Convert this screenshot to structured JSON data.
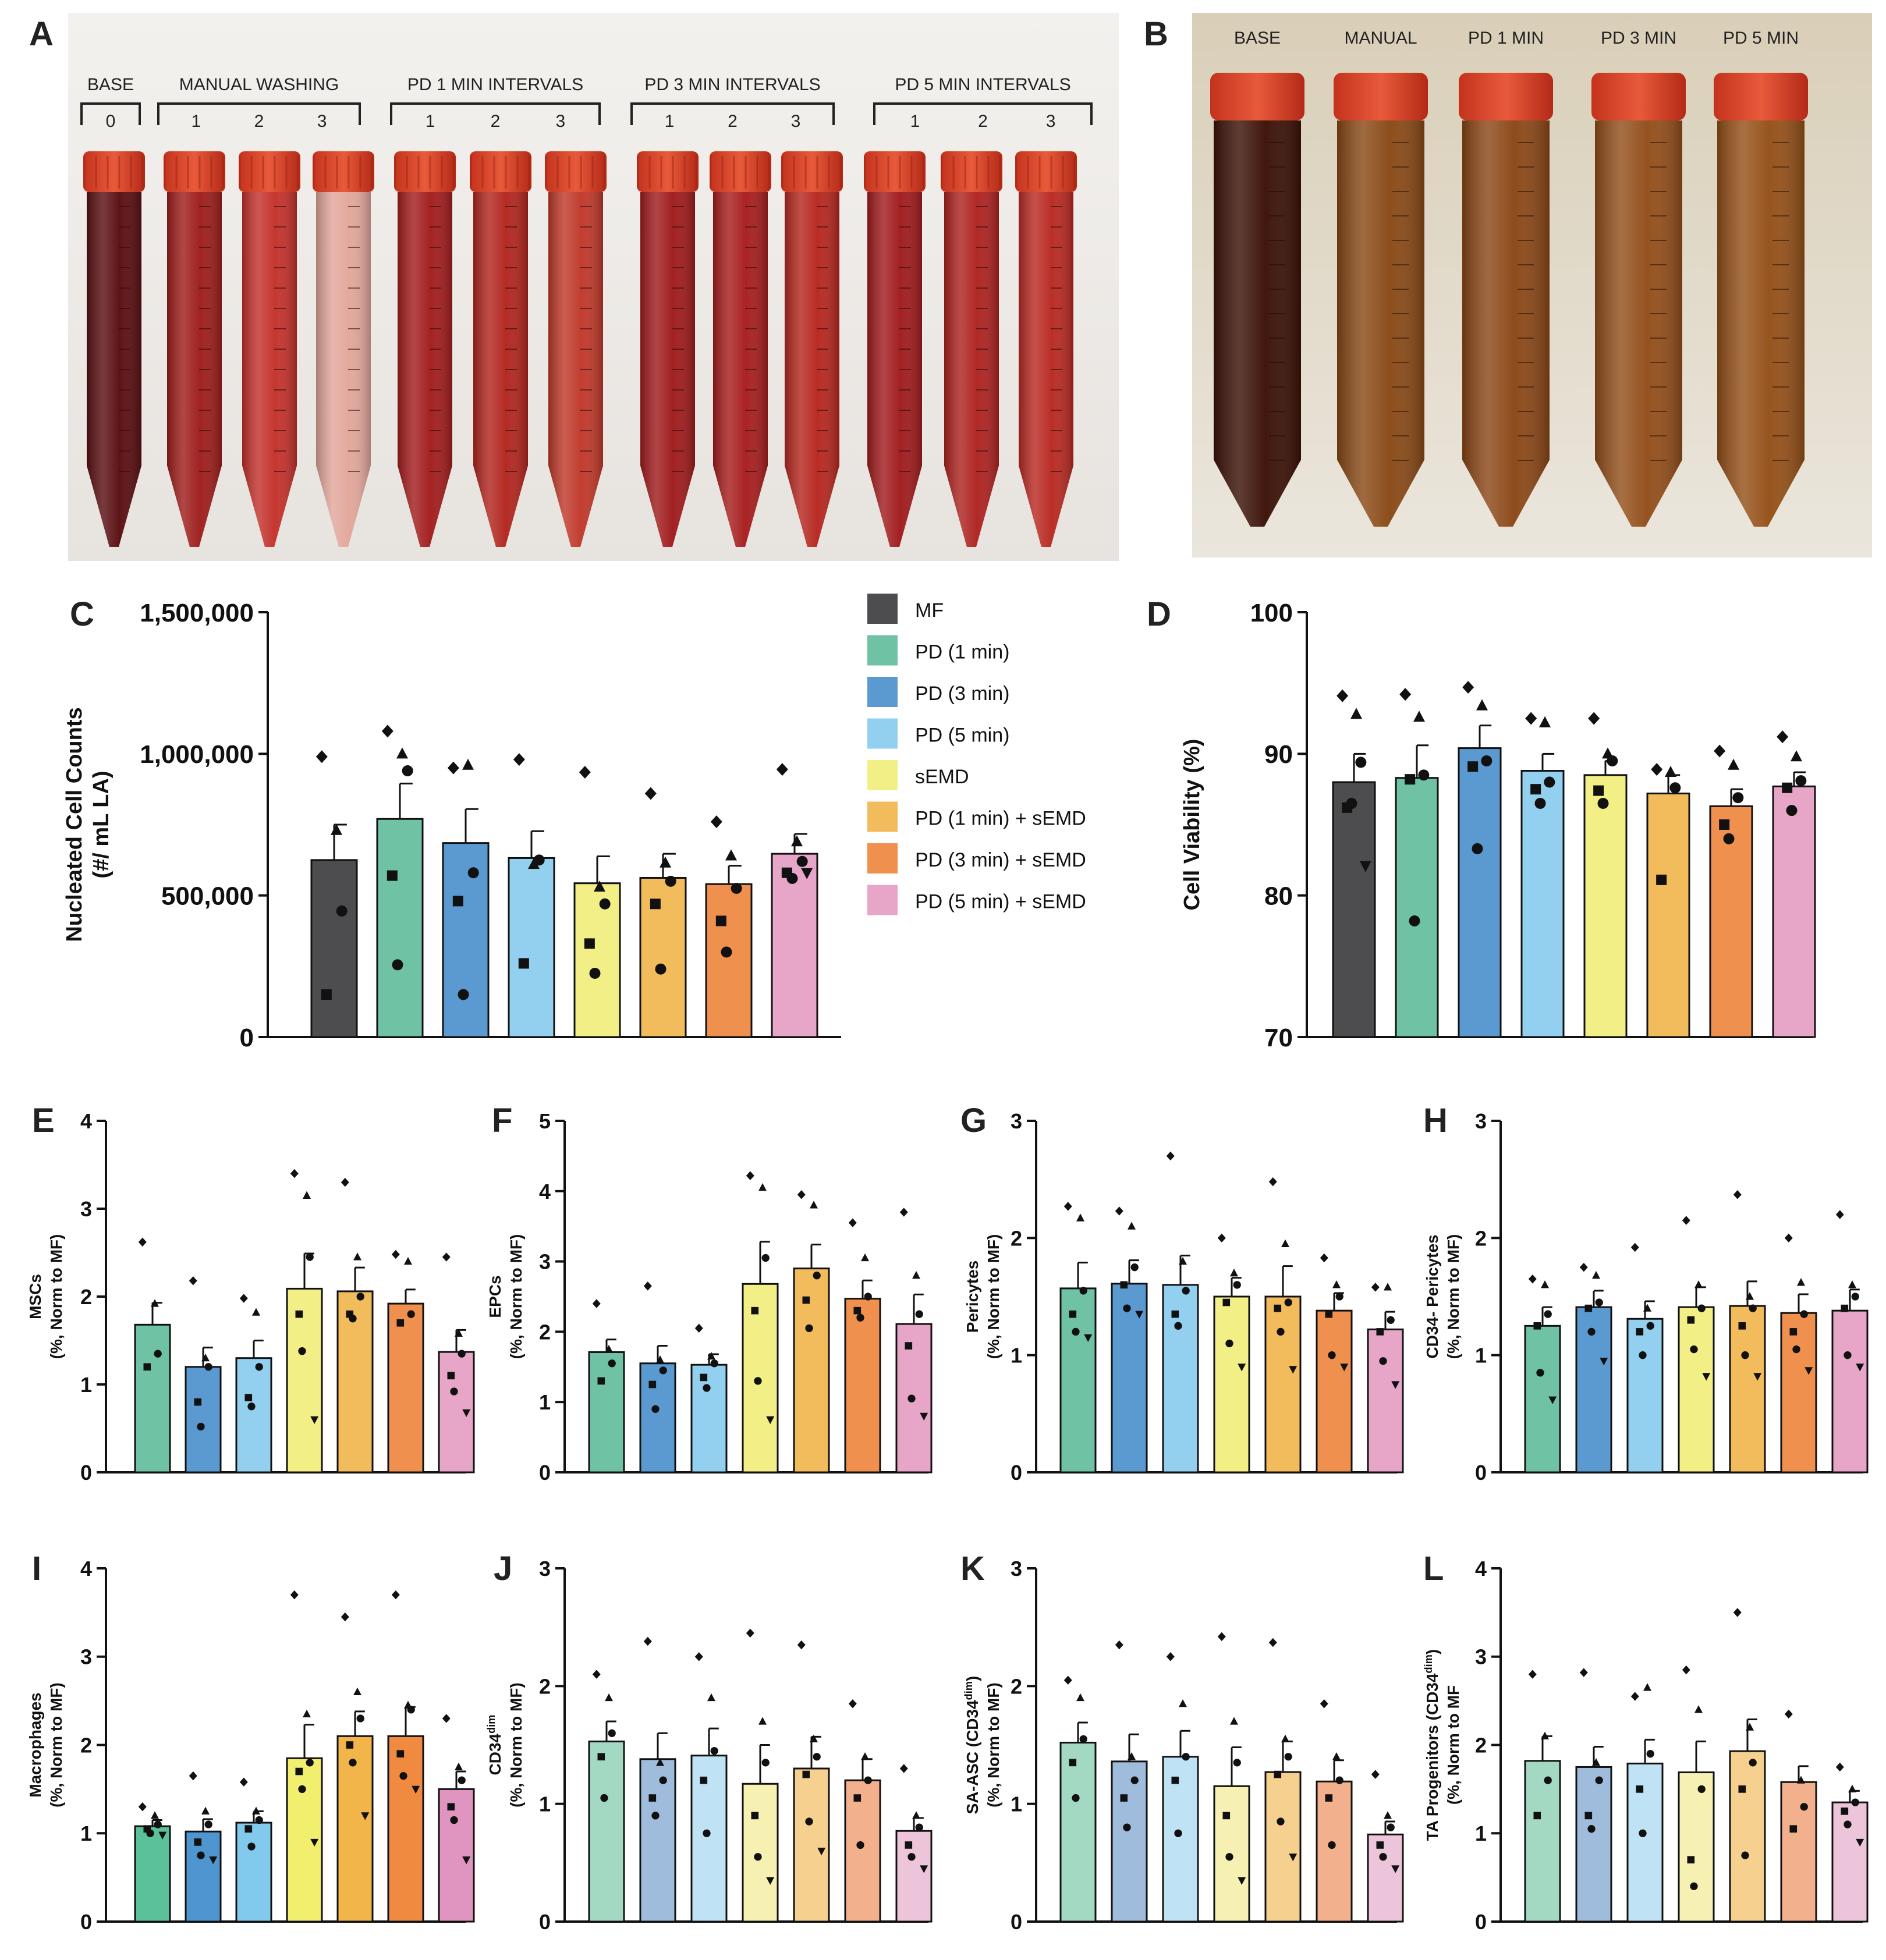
{
  "panel_letters": {
    "A": "A",
    "B": "B"
  },
  "photo_a": {
    "groups": [
      {
        "label": "BASE",
        "numbers": [
          "0"
        ]
      },
      {
        "label": "MANUAL WASHING",
        "numbers": [
          "1",
          "2",
          "3"
        ]
      },
      {
        "label": "PD 1 MIN INTERVALS",
        "numbers": [
          "1",
          "2",
          "3"
        ]
      },
      {
        "label": "PD 3 MIN INTERVALS",
        "numbers": [
          "1",
          "2",
          "3"
        ]
      },
      {
        "label": "PD 5 MIN INTERVALS",
        "numbers": [
          "1",
          "2",
          "3"
        ]
      }
    ],
    "tube_liquid_colors": [
      "#5a0f12",
      "#9e1e1c",
      "#c4322c",
      "#e2a79c",
      "#a31d1e",
      "#b2261f",
      "#c0392b",
      "#a01c1d",
      "#a81e1f",
      "#b62820",
      "#a11c1e",
      "#ae2421",
      "#b92a23"
    ]
  },
  "photo_b": {
    "labels": [
      "BASE",
      "MANUAL",
      "PD 1 MIN",
      "PD 3 MIN",
      "PD 5 MIN"
    ],
    "tube_liquid_colors": [
      "#3c1208",
      "#8a4a17",
      "#8c4818",
      "#934f1b",
      "#955119"
    ]
  },
  "legend": {
    "entries": [
      {
        "label": "MF",
        "color": "#4d4d4f"
      },
      {
        "label": "PD (1 min)",
        "color": "#6fc3a4"
      },
      {
        "label": "PD (3 min)",
        "color": "#5b9ad0"
      },
      {
        "label": "PD (5 min)",
        "color": "#93d0f0"
      },
      {
        "label": "sEMD",
        "color": "#f3ef87"
      },
      {
        "label": "PD (1 min) + sEMD",
        "color": "#f2bb5b"
      },
      {
        "label": "PD (3 min) + sEMD",
        "color": "#ef904e"
      },
      {
        "label": "PD (5 min) + sEMD",
        "color": "#e7a5c8"
      }
    ]
  },
  "chart_data": [
    {
      "panel": "C",
      "type": "bar",
      "ylabel": [
        "Nucleated Cell Counts",
        "(#/ mL LA)"
      ],
      "yticks": [
        "0",
        "500,000",
        "1,000,000",
        "1,500,000"
      ],
      "ytick_values": [
        0,
        500000,
        1000000,
        1500000
      ],
      "ylim": [
        0,
        1500000
      ],
      "colors": [
        "#4d4d4f",
        "#6fc3a4",
        "#5b9ad0",
        "#93d0f0",
        "#f3ef87",
        "#f2bb5b",
        "#ef904e",
        "#e7a5c8"
      ],
      "means": [
        625000,
        770000,
        685000,
        632000,
        543000,
        562000,
        540000,
        647000
      ],
      "sems": [
        125000,
        125000,
        120000,
        95000,
        95000,
        85000,
        65000,
        70000
      ],
      "points": [
        [
          990000,
          730000,
          445000,
          150000
        ],
        [
          1080000,
          1000000,
          940000,
          570000,
          255000
        ],
        [
          950000,
          960000,
          580000,
          480000,
          150000
        ],
        [
          980000,
          610000,
          625000,
          260000
        ],
        [
          935000,
          530000,
          470000,
          330000,
          225000
        ],
        [
          860000,
          615000,
          550000,
          470000,
          240000
        ],
        [
          760000,
          640000,
          525000,
          410000,
          300000
        ],
        [
          945000,
          690000,
          620000,
          580000,
          560000,
          580000
        ]
      ]
    },
    {
      "panel": "D",
      "type": "bar",
      "ylabel": [
        "Cell Viability (%)"
      ],
      "yticks": [
        "70",
        "80",
        "90",
        "100"
      ],
      "ytick_values": [
        70,
        80,
        90,
        100
      ],
      "ylim": [
        70,
        100
      ],
      "colors": [
        "#4d4d4f",
        "#6fc3a4",
        "#5b9ad0",
        "#93d0f0",
        "#f3ef87",
        "#f2bb5b",
        "#ef904e",
        "#e7a5c8"
      ],
      "means": [
        88.0,
        88.3,
        90.4,
        88.8,
        88.5,
        87.2,
        86.3,
        87.7
      ],
      "sems": [
        2.0,
        2.3,
        1.6,
        1.2,
        1.0,
        1.3,
        1.2,
        1.0
      ],
      "points": [
        [
          94.1,
          92.8,
          89.4,
          86.2,
          86.5,
          82.1
        ],
        [
          94.2,
          92.6,
          88.5,
          88.2,
          78.2
        ],
        [
          94.7,
          93.4,
          89.5,
          89.1,
          83.3
        ],
        [
          92.5,
          92.2,
          88.0,
          87.5,
          86.5
        ],
        [
          92.5,
          90.0,
          89.5,
          87.4,
          86.5
        ],
        [
          88.9,
          88.7,
          87.6,
          81.1
        ],
        [
          90.2,
          89.2,
          86.9,
          85.0,
          84.0
        ],
        [
          91.2,
          89.8,
          88.1,
          87.6,
          86.0
        ]
      ]
    },
    {
      "panel": "E",
      "type": "bar",
      "ylabel": [
        "MSCs",
        "(%, Norm to MF)"
      ],
      "yticks": [
        "0",
        "1",
        "2",
        "3",
        "4"
      ],
      "ytick_values": [
        0,
        1,
        2,
        3,
        4
      ],
      "ylim": [
        0,
        4
      ],
      "colors": [
        "#6fc3a4",
        "#5b9ad0",
        "#93d0f0",
        "#f3ef87",
        "#f2bb5b",
        "#ef904e",
        "#e7a5c8"
      ],
      "means": [
        1.68,
        1.2,
        1.3,
        2.09,
        2.06,
        1.92,
        1.37
      ],
      "sems": [
        0.25,
        0.22,
        0.2,
        0.4,
        0.27,
        0.16,
        0.25
      ],
      "points": [
        [
          2.62,
          1.92,
          1.35,
          1.2
        ],
        [
          2.18,
          1.3,
          1.2,
          0.8,
          0.52
        ],
        [
          1.98,
          1.82,
          1.2,
          0.85,
          0.75
        ],
        [
          3.4,
          3.15,
          2.45,
          1.8,
          1.38,
          0.6
        ],
        [
          3.3,
          2.45,
          2.0,
          1.8,
          1.75
        ],
        [
          2.48,
          2.4,
          1.8,
          1.7
        ],
        [
          2.45,
          1.58,
          1.35,
          1.1,
          0.92,
          0.68
        ]
      ]
    },
    {
      "panel": "F",
      "type": "bar",
      "ylabel": [
        "EPCs",
        "(%, Norm to MF)"
      ],
      "yticks": [
        "0",
        "1",
        "2",
        "3",
        "4",
        "5"
      ],
      "ytick_values": [
        0,
        1,
        2,
        3,
        4,
        5
      ],
      "ylim": [
        0,
        5
      ],
      "colors": [
        "#6fc3a4",
        "#5b9ad0",
        "#93d0f0",
        "#f3ef87",
        "#f2bb5b",
        "#ef904e",
        "#e7a5c8"
      ],
      "means": [
        1.71,
        1.55,
        1.53,
        2.68,
        2.9,
        2.47,
        2.11
      ],
      "sems": [
        0.18,
        0.25,
        0.15,
        0.6,
        0.34,
        0.26,
        0.42
      ],
      "points": [
        [
          2.4,
          1.75,
          1.55,
          1.3
        ],
        [
          2.65,
          1.6,
          1.45,
          1.25,
          0.9
        ],
        [
          2.05,
          1.65,
          1.55,
          1.35,
          1.2
        ],
        [
          4.22,
          4.05,
          3.05,
          2.3,
          1.3,
          0.75
        ],
        [
          3.95,
          3.8,
          2.8,
          2.45,
          2.05
        ],
        [
          3.55,
          3.05,
          2.5,
          2.3,
          2.2
        ],
        [
          3.7,
          2.8,
          2.25,
          1.8,
          1.05,
          0.8
        ]
      ]
    },
    {
      "panel": "G",
      "type": "bar",
      "ylabel": [
        "Pericytes",
        "(%, Norm to MF)"
      ],
      "yticks": [
        "0",
        "1",
        "2",
        "3"
      ],
      "ytick_values": [
        0,
        1,
        2,
        3
      ],
      "ylim": [
        0,
        3
      ],
      "colors": [
        "#6fc3a4",
        "#5b9ad0",
        "#93d0f0",
        "#f3ef87",
        "#f2bb5b",
        "#ef904e",
        "#e7a5c8"
      ],
      "means": [
        1.57,
        1.61,
        1.6,
        1.5,
        1.5,
        1.38,
        1.22
      ],
      "sems": [
        0.22,
        0.2,
        0.25,
        0.16,
        0.26,
        0.15,
        0.15
      ],
      "points": [
        [
          2.27,
          2.17,
          1.55,
          1.35,
          1.2,
          1.15
        ],
        [
          2.23,
          2.1,
          1.75,
          1.6,
          1.4,
          1.35
        ],
        [
          2.7,
          1.8,
          1.55,
          1.35,
          1.25
        ],
        [
          2.0,
          1.7,
          1.6,
          1.45,
          1.1,
          0.9
        ],
        [
          2.48,
          1.95,
          1.45,
          1.4,
          1.2,
          0.88
        ],
        [
          1.83,
          1.6,
          1.5,
          1.35,
          1.0,
          0.9
        ],
        [
          1.58,
          1.58,
          1.3,
          1.2,
          0.95,
          0.75
        ]
      ]
    },
    {
      "panel": "H",
      "type": "bar",
      "ylabel": [
        "CD34- Pericytes",
        "(%, Norm to MF)"
      ],
      "yticks": [
        "0",
        "1",
        "2",
        "3"
      ],
      "ytick_values": [
        0,
        1,
        2,
        3
      ],
      "ylim": [
        0,
        3
      ],
      "colors": [
        "#6fc3a4",
        "#5b9ad0",
        "#93d0f0",
        "#f3ef87",
        "#f2bb5b",
        "#ef904e",
        "#e7a5c8"
      ],
      "means": [
        1.25,
        1.41,
        1.31,
        1.41,
        1.42,
        1.36,
        1.38
      ],
      "sems": [
        0.16,
        0.14,
        0.15,
        0.17,
        0.21,
        0.16,
        0.18
      ],
      "points": [
        [
          1.65,
          1.6,
          1.35,
          1.25,
          0.85,
          0.62
        ],
        [
          1.75,
          1.68,
          1.45,
          1.4,
          1.2,
          0.95
        ],
        [
          1.92,
          1.4,
          1.25,
          1.2,
          1.0
        ],
        [
          2.15,
          1.6,
          1.4,
          1.3,
          1.05,
          0.82
        ],
        [
          2.37,
          1.5,
          1.4,
          1.25,
          1.0,
          0.82
        ],
        [
          2.0,
          1.62,
          1.35,
          1.2,
          1.05,
          0.87
        ],
        [
          2.2,
          1.6,
          1.5,
          1.4,
          1.0,
          0.9
        ]
      ]
    },
    {
      "panel": "I",
      "type": "bar",
      "ylabel": [
        "Macrophages",
        "(%, Norm to MF)"
      ],
      "yticks": [
        "0",
        "1",
        "2",
        "3",
        "4"
      ],
      "ytick_values": [
        0,
        1,
        2,
        3,
        4
      ],
      "ylim": [
        0,
        4
      ],
      "colors": [
        "#5bc19b",
        "#4f96d0",
        "#82c9ee",
        "#f3ef6e",
        "#f2b54a",
        "#ef8a40",
        "#e094c0"
      ],
      "means": [
        1.08,
        1.02,
        1.12,
        1.85,
        2.1,
        2.1,
        1.5
      ],
      "sems": [
        0.07,
        0.14,
        0.13,
        0.38,
        0.28,
        0.33,
        0.2
      ],
      "points": [
        [
          1.3,
          1.2,
          1.1,
          1.05,
          1.0,
          0.98
        ],
        [
          1.65,
          1.25,
          1.1,
          0.9,
          0.75,
          0.7
        ],
        [
          1.58,
          1.25,
          1.15,
          1.05,
          0.85
        ],
        [
          3.7,
          2.35,
          1.8,
          1.7,
          1.5,
          0.9
        ],
        [
          3.45,
          2.6,
          2.3,
          2.0,
          1.8,
          1.2
        ],
        [
          3.7,
          2.45,
          2.4,
          1.9,
          1.65,
          1.5
        ],
        [
          2.3,
          1.75,
          1.6,
          1.3,
          1.15,
          0.7
        ]
      ]
    },
    {
      "panel": "J",
      "type": "bar",
      "ylabel": [
        "CD34dim",
        "(%, Norm to MF)"
      ],
      "ylabel_sup": "dim",
      "ylabel_base": "CD34",
      "yticks": [
        "0",
        "1",
        "2",
        "3"
      ],
      "ytick_values": [
        0,
        1,
        2,
        3
      ],
      "ylim": [
        0,
        3
      ],
      "colors": [
        "#a3d9c2",
        "#9fbcdc",
        "#bfe2f5",
        "#f6f1b3",
        "#f5d08f",
        "#f2b08c",
        "#ecc5da"
      ],
      "means": [
        1.53,
        1.38,
        1.41,
        1.17,
        1.3,
        1.2,
        0.77
      ],
      "sems": [
        0.17,
        0.22,
        0.23,
        0.33,
        0.27,
        0.18,
        0.11
      ],
      "points": [
        [
          2.1,
          1.9,
          1.6,
          1.4,
          1.05
        ],
        [
          2.38,
          1.35,
          1.2,
          1.05,
          0.9
        ],
        [
          2.25,
          1.9,
          1.45,
          1.2,
          0.75
        ],
        [
          2.45,
          1.7,
          1.35,
          0.9,
          0.55,
          0.35
        ],
        [
          2.35,
          1.55,
          1.4,
          1.25,
          0.85,
          0.6
        ],
        [
          1.85,
          1.4,
          1.2,
          1.05,
          0.65
        ],
        [
          1.3,
          0.9,
          0.8,
          0.65,
          0.55,
          0.45
        ]
      ]
    },
    {
      "panel": "K",
      "type": "bar",
      "ylabel": [
        "SA-ASC (CD34dim)",
        "(%, Norm to MF)"
      ],
      "ylabel_sup": "dim",
      "ylabel_base": "SA-ASC (CD34",
      "yticks": [
        "0",
        "1",
        "2",
        "3"
      ],
      "ytick_values": [
        0,
        1,
        2,
        3
      ],
      "ylim": [
        0,
        3
      ],
      "colors": [
        "#a3d9c2",
        "#9fbcdc",
        "#bfe2f5",
        "#f6f1b3",
        "#f5d08f",
        "#f2b08c",
        "#ecc5da"
      ],
      "means": [
        1.52,
        1.36,
        1.4,
        1.15,
        1.27,
        1.19,
        0.74
      ],
      "sems": [
        0.17,
        0.23,
        0.22,
        0.33,
        0.26,
        0.18,
        0.11
      ],
      "points": [
        [
          2.05,
          1.9,
          1.55,
          1.35,
          1.05
        ],
        [
          2.35,
          1.4,
          1.2,
          1.05,
          0.8
        ],
        [
          2.25,
          1.85,
          1.4,
          1.2,
          0.75
        ],
        [
          2.42,
          1.7,
          1.35,
          0.9,
          0.55,
          0.35
        ],
        [
          2.37,
          1.55,
          1.4,
          1.25,
          0.85,
          0.55
        ],
        [
          1.85,
          1.4,
          1.2,
          1.05,
          0.65
        ],
        [
          1.25,
          0.9,
          0.8,
          0.65,
          0.55,
          0.45
        ]
      ]
    },
    {
      "panel": "L",
      "type": "bar",
      "ylabel": [
        "TA Progenitors (CD34dim)",
        "(%, Norm to MF"
      ],
      "ylabel_sup": "dim",
      "ylabel_base": "TA Progenitors (CD34",
      "yticks": [
        "0",
        "1",
        "2",
        "3",
        "4"
      ],
      "ytick_values": [
        0,
        1,
        2,
        3,
        4
      ],
      "ylim": [
        0,
        4
      ],
      "colors": [
        "#a3d9c2",
        "#9fbcdc",
        "#bfe2f5",
        "#f6f1b3",
        "#f5d08f",
        "#f2b08c",
        "#ecc5da"
      ],
      "means": [
        1.82,
        1.75,
        1.79,
        1.69,
        1.93,
        1.58,
        1.35
      ],
      "sems": [
        0.28,
        0.23,
        0.27,
        0.35,
        0.36,
        0.18,
        0.13
      ],
      "points": [
        [
          2.8,
          2.1,
          1.6,
          1.2
        ],
        [
          2.82,
          1.8,
          1.6,
          1.2,
          1.05
        ],
        [
          2.55,
          2.65,
          1.9,
          1.5,
          1.0
        ],
        [
          2.85,
          2.4,
          1.5,
          0.7,
          0.4
        ],
        [
          3.5,
          2.2,
          1.8,
          1.5,
          0.75
        ],
        [
          2.35,
          1.6,
          1.3,
          1.05
        ],
        [
          1.75,
          1.5,
          1.35,
          1.25,
          1.1,
          0.9
        ]
      ]
    }
  ]
}
